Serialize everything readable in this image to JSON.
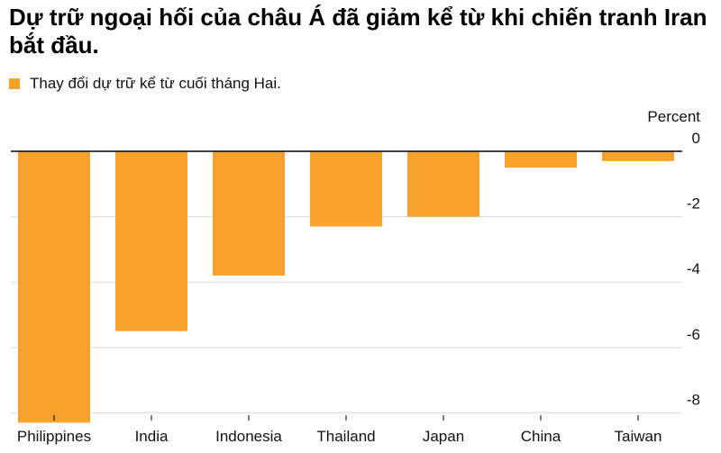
{
  "title": "Dự trữ ngoại hối của châu Á đã giảm kể từ khi chiến tranh Iran bắt đầu.",
  "legend": {
    "label": "Thay đổi dự trữ kể từ cuối tháng Hai.",
    "color": "#f7a22c"
  },
  "chart_data": {
    "type": "bar",
    "title": "Dự trữ ngoại hối của châu Á đã giảm kể từ khi chiến tranh Iran bắt đầu.",
    "xlabel": "",
    "ylabel": "Percent",
    "unit_label": "Percent",
    "categories": [
      "Philippines",
      "India",
      "Indonesia",
      "Thailand",
      "Japan",
      "China",
      "Taiwan"
    ],
    "series": [
      {
        "name": "Thay đổi dự trữ kể từ cuối tháng Hai.",
        "values": [
          -8.3,
          -5.5,
          -3.8,
          -2.3,
          -2.0,
          -0.5,
          -0.3
        ]
      }
    ],
    "ylim": [
      -8.3,
      0
    ],
    "yticks": [
      0,
      -2,
      -4,
      -6,
      -8
    ],
    "ytick_labels": [
      "0",
      "-2",
      "-4",
      "-6",
      "-8"
    ],
    "grid": true,
    "legend_position": "top-left",
    "bar_color": "#f7a22c",
    "zero_line_color": "#000000",
    "grid_color": "#d9d9d9"
  }
}
